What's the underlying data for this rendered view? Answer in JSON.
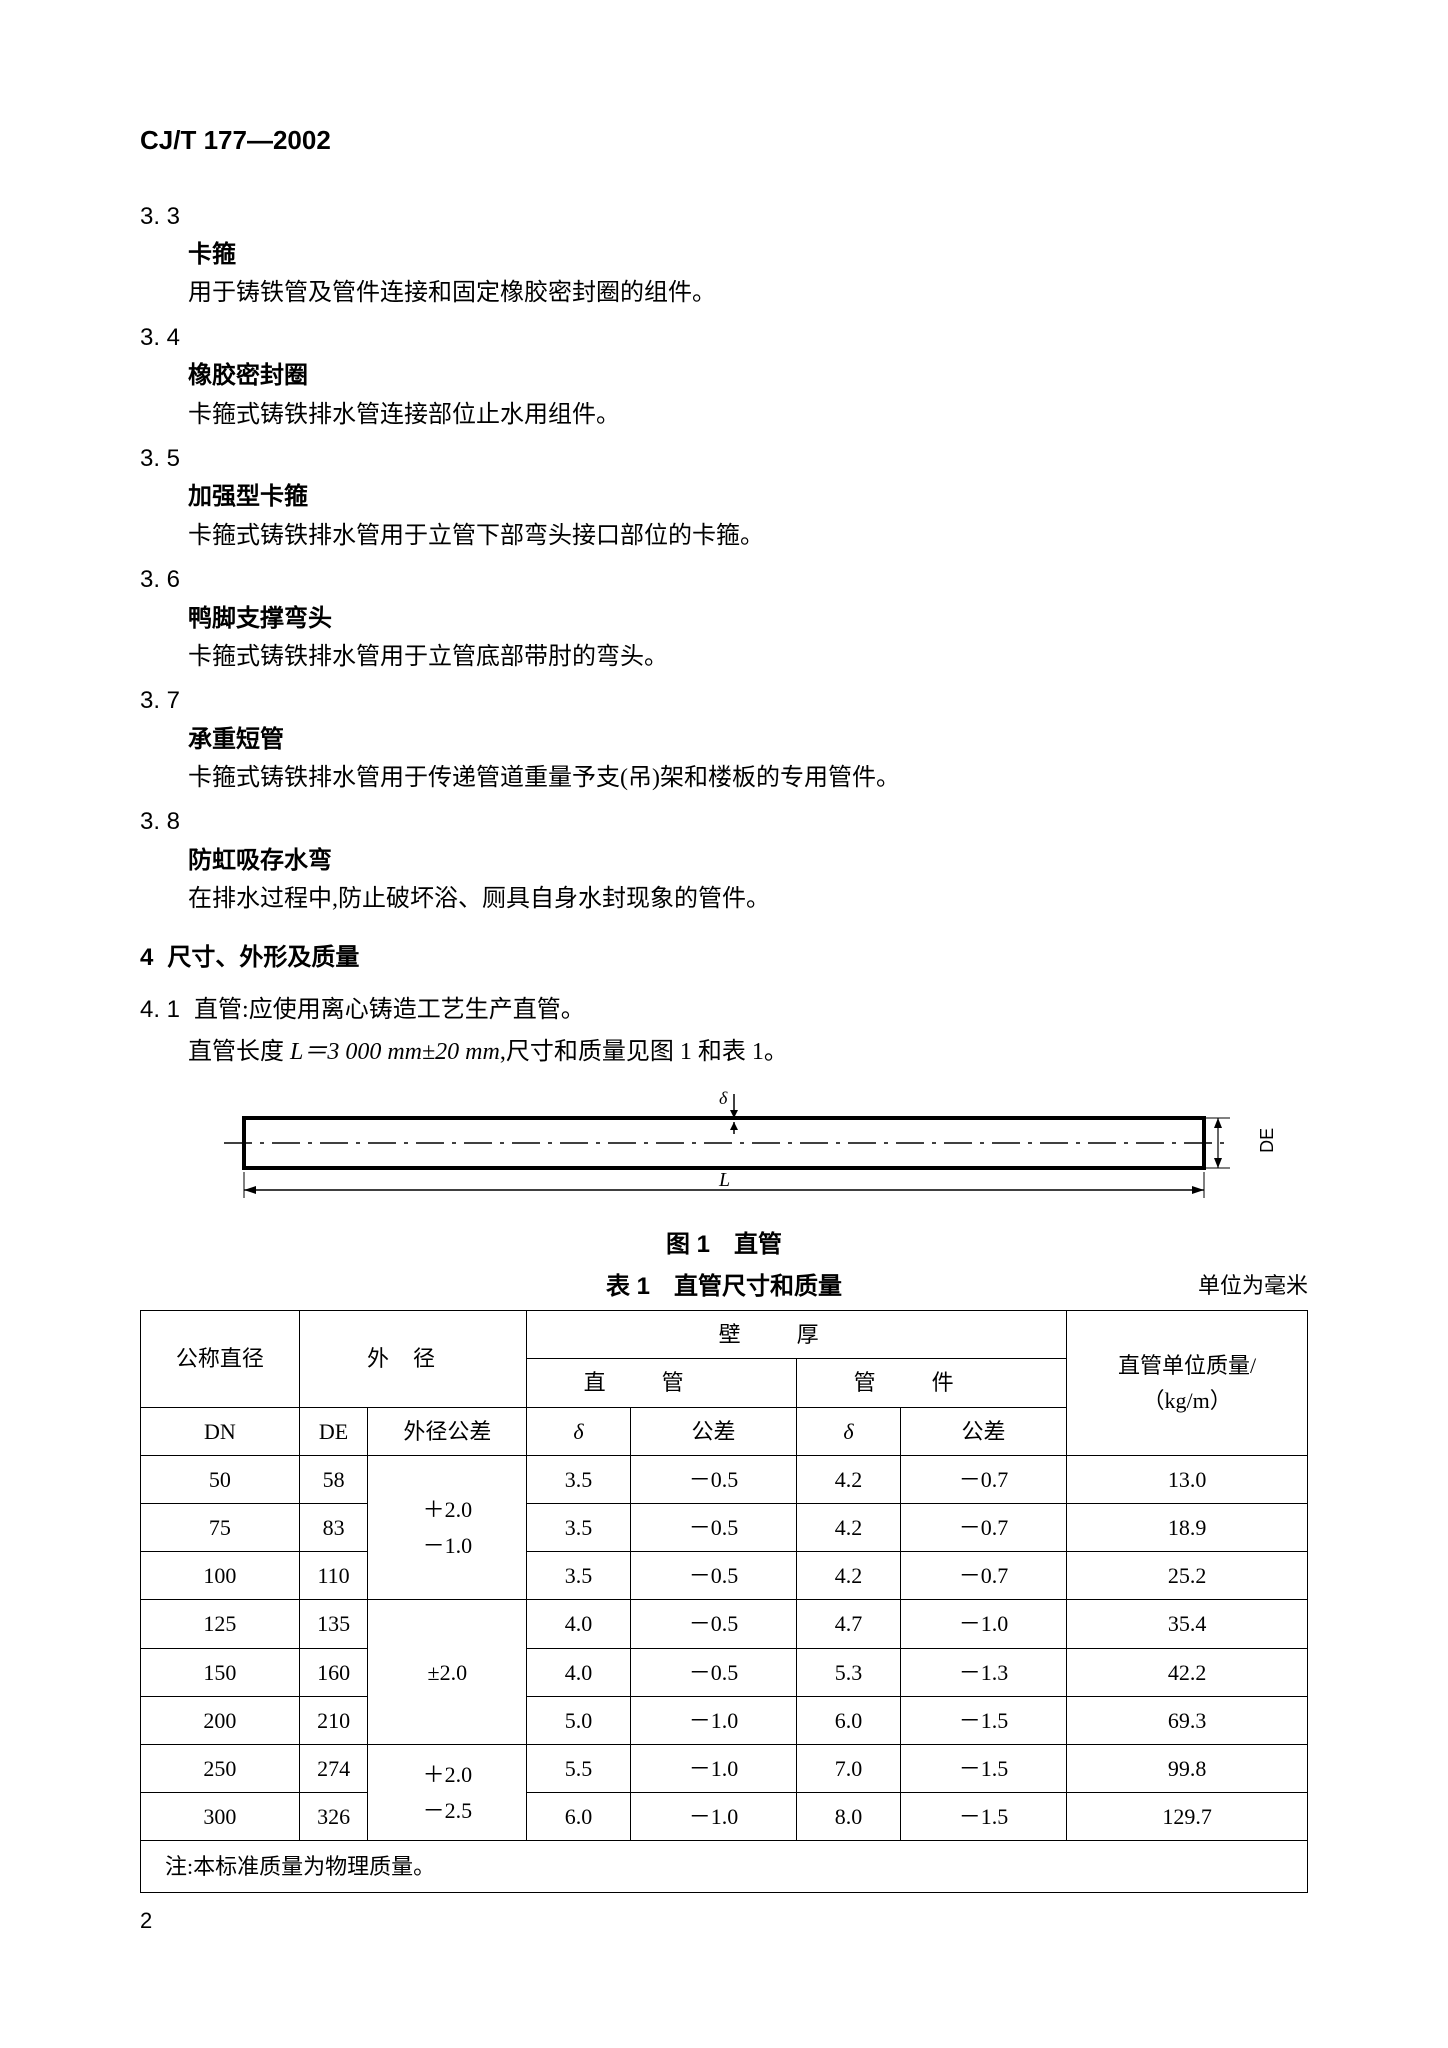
{
  "header": {
    "code": "CJ/T 177—2002"
  },
  "sections": [
    {
      "num": "3. 3",
      "title": "卡箍",
      "desc": "用于铸铁管及管件连接和固定橡胶密封圈的组件。"
    },
    {
      "num": "3. 4",
      "title": "橡胶密封圈",
      "desc": "卡箍式铸铁排水管连接部位止水用组件。"
    },
    {
      "num": "3. 5",
      "title": "加强型卡箍",
      "desc": "卡箍式铸铁排水管用于立管下部弯头接口部位的卡箍。"
    },
    {
      "num": "3. 6",
      "title": "鸭脚支撑弯头",
      "desc": "卡箍式铸铁排水管用于立管底部带肘的弯头。"
    },
    {
      "num": "3. 7",
      "title": "承重短管",
      "desc": "卡箍式铸铁排水管用于传递管道重量予支(吊)架和楼板的专用管件。"
    },
    {
      "num": "3. 8",
      "title": "防虹吸存水弯",
      "desc": "在排水过程中,防止破坏浴、厕具自身水封现象的管件。"
    }
  ],
  "h4": {
    "num": "4",
    "title": "尺寸、外形及质量"
  },
  "clause41": {
    "num": "4. 1",
    "line1": "直管:应使用离心铸造工艺生产直管。",
    "line2_pre": "直管长度 ",
    "line2_formula": "L＝3 000 mm±20 mm",
    "line2_post": ",尺寸和质量见图 1 和表 1。"
  },
  "figure": {
    "label_delta": "δ",
    "label_L": "L",
    "label_DE": "DE",
    "caption": "图 1　直管"
  },
  "table": {
    "caption": "表 1　直管尺寸和质量",
    "unit": "单位为毫米",
    "headers": {
      "col1": "公称直径",
      "col2": "外径",
      "col_wall": "壁厚",
      "col_pipe": "直管",
      "col_fitting": "管件",
      "col_mass": "直管单位质量/",
      "col_mass_unit": "（kg/m）",
      "DN": "DN",
      "DE": "DE",
      "de_tol": "外径公差",
      "delta": "δ",
      "tol": "公差"
    },
    "tolerance_groups": [
      {
        "text_top": "＋2.0",
        "text_bot": "－1.0",
        "span": 3
      },
      {
        "text_top": "±2.0",
        "text_bot": "",
        "span": 3
      },
      {
        "text_top": "＋2.0",
        "text_bot": "－2.5",
        "span": 2
      }
    ],
    "rows": [
      {
        "dn": "50",
        "de": "58",
        "d1": "3.5",
        "t1": "－0.5",
        "d2": "4.2",
        "t2": "－0.7",
        "m": "13.0"
      },
      {
        "dn": "75",
        "de": "83",
        "d1": "3.5",
        "t1": "－0.5",
        "d2": "4.2",
        "t2": "－0.7",
        "m": "18.9"
      },
      {
        "dn": "100",
        "de": "110",
        "d1": "3.5",
        "t1": "－0.5",
        "d2": "4.2",
        "t2": "－0.7",
        "m": "25.2"
      },
      {
        "dn": "125",
        "de": "135",
        "d1": "4.0",
        "t1": "－0.5",
        "d2": "4.7",
        "t2": "－1.0",
        "m": "35.4"
      },
      {
        "dn": "150",
        "de": "160",
        "d1": "4.0",
        "t1": "－0.5",
        "d2": "5.3",
        "t2": "－1.3",
        "m": "42.2"
      },
      {
        "dn": "200",
        "de": "210",
        "d1": "5.0",
        "t1": "－1.0",
        "d2": "6.0",
        "t2": "－1.5",
        "m": "69.3"
      },
      {
        "dn": "250",
        "de": "274",
        "d1": "5.5",
        "t1": "－1.0",
        "d2": "7.0",
        "t2": "－1.5",
        "m": "99.8"
      },
      {
        "dn": "300",
        "de": "326",
        "d1": "6.0",
        "t1": "－1.0",
        "d2": "8.0",
        "t2": "－1.5",
        "m": "129.7"
      }
    ],
    "note": "注:本标准质量为物理质量。"
  },
  "page_number": "2",
  "colors": {
    "text": "#000000",
    "bg": "#ffffff",
    "rule": "#000000"
  }
}
